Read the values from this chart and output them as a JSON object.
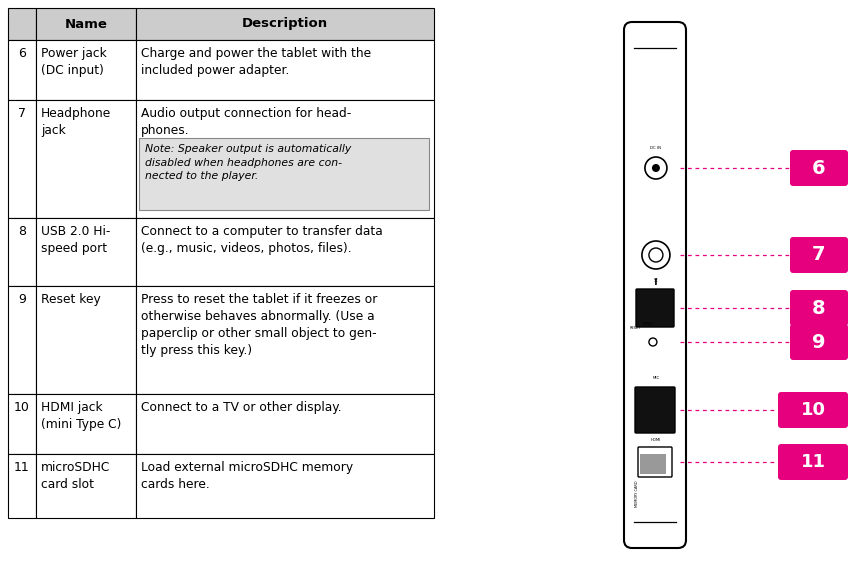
{
  "bg_color": "#ffffff",
  "header_bg": "#cccccc",
  "note_bg": "#e0e0e0",
  "magenta": "#e6007e",
  "white": "#ffffff",
  "black": "#000000",
  "rows": [
    {
      "num": "6",
      "name": "Power jack\n(DC input)",
      "desc_lines": [
        "Charge and power the tablet with the",
        "included power adapter."
      ],
      "note": null
    },
    {
      "num": "7",
      "name": "Headphone\njack",
      "desc_lines": [
        "Audio output connection for head-",
        "phones."
      ],
      "note": "Note: Speaker output is automatically\ndisabled when headphones are con-\nnected to the player."
    },
    {
      "num": "8",
      "name": "USB 2.0 Hi-\nspeed port",
      "desc_lines": [
        "Connect to a computer to transfer data",
        "(e.g., music, videos, photos, files)."
      ],
      "note": null
    },
    {
      "num": "9",
      "name": "Reset key",
      "desc_lines": [
        "Press to reset the tablet if it freezes or",
        "otherwise behaves abnormally. (Use a",
        "paperclip or other small object to gen-",
        "tly press this key.)"
      ],
      "note": null
    },
    {
      "num": "10",
      "name": "HDMI jack\n(mini Type C)",
      "desc_lines": [
        "Connect to a TV or other display."
      ],
      "note": null
    },
    {
      "num": "11",
      "name": "microSDHC\ncard slot",
      "desc_lines": [
        "Load external microSDHC memory",
        "cards here."
      ],
      "note": null
    }
  ],
  "fig_width": 8.56,
  "fig_height": 5.68,
  "dpi": 100
}
